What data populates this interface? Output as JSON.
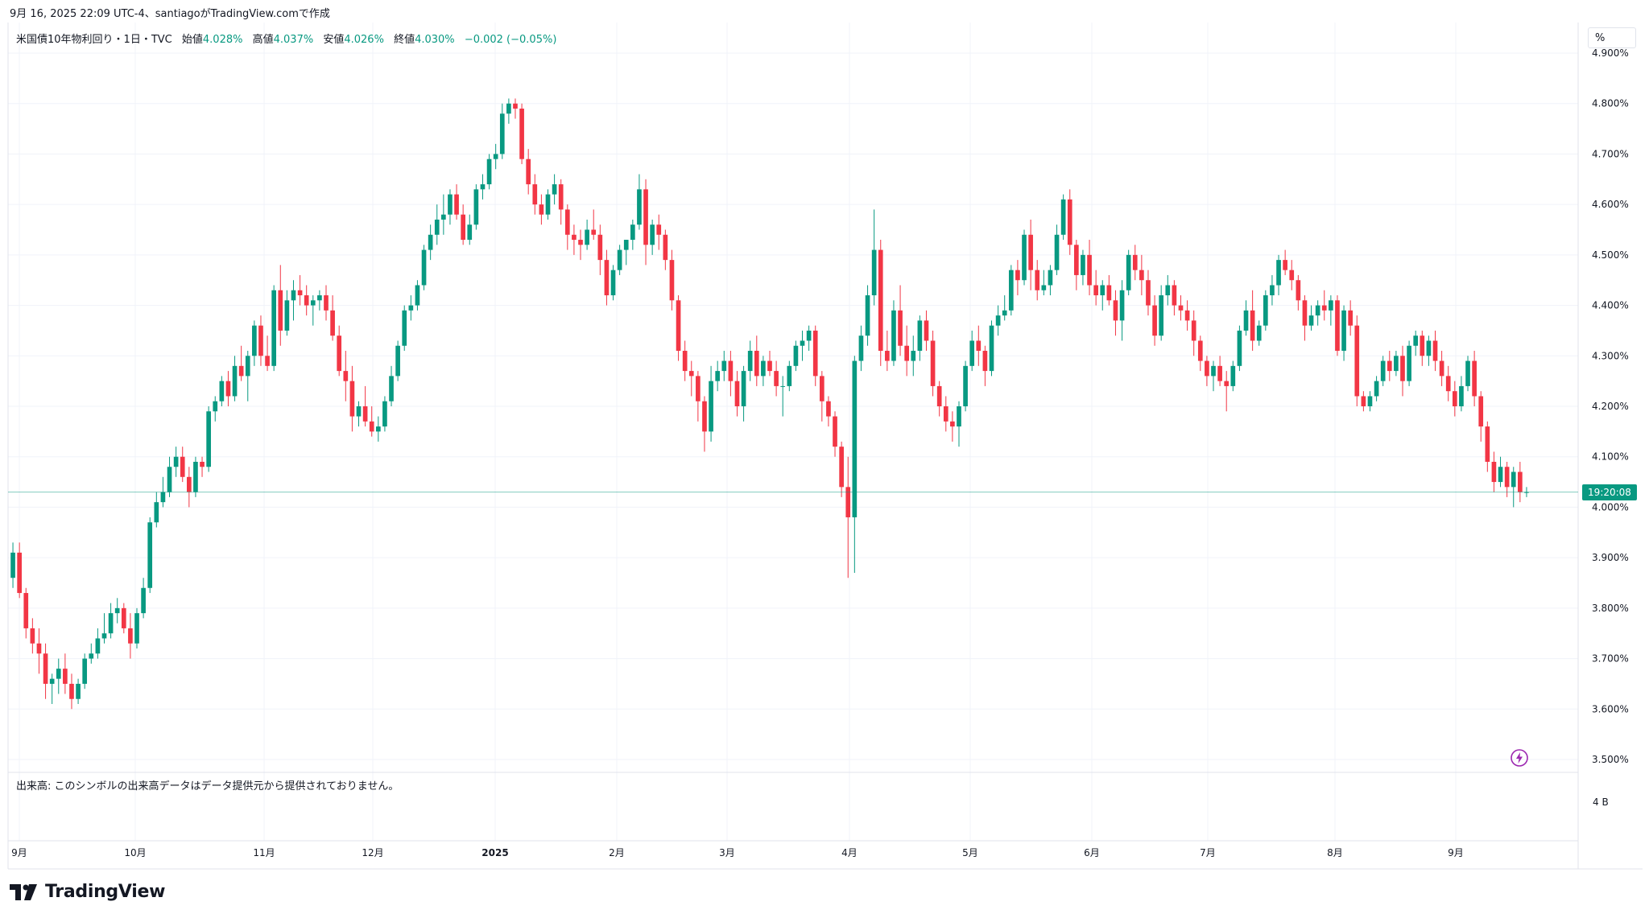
{
  "header": {
    "info": "9月 16, 2025 22:09 UTC-4、santiagoがTradingView.comで作成"
  },
  "legend": {
    "symbol": "米国債10年物利回り・1日・TVC",
    "open_label": "始値",
    "open": "4.028%",
    "high_label": "高値",
    "high": "4.037%",
    "low_label": "安値",
    "low": "4.026%",
    "close_label": "終値",
    "close": "4.030%",
    "change": "−0.002 (−0.05%)"
  },
  "price_axis": {
    "unit": "%",
    "last_price_tag": "19:20:08"
  },
  "volume": {
    "note": "出来高: このシンボルの出来高データはデータ提供元から提供されておりません。",
    "axis_label": "4 B"
  },
  "logo": {
    "text": "TradingView"
  },
  "colors": {
    "up": "#089981",
    "down": "#f23645",
    "grid": "#f0f3fa",
    "last_line": "#089981"
  },
  "icons": {
    "lightning": "lightning-icon",
    "logo": "tradingview-logo-icon"
  },
  "chart_data": {
    "type": "candlestick",
    "ylim": [
      3.5,
      4.9
    ],
    "y_ticks": [
      "4.900%",
      "4.800%",
      "4.700%",
      "4.600%",
      "4.500%",
      "4.400%",
      "4.300%",
      "4.200%",
      "4.100%",
      "4.000%",
      "3.900%",
      "3.800%",
      "3.700%",
      "3.600%",
      "3.500%"
    ],
    "x_ticks": [
      "9月",
      "10月",
      "11月",
      "12月",
      "2025",
      "2月",
      "3月",
      "4月",
      "5月",
      "6月",
      "7月",
      "8月",
      "9月"
    ],
    "last_close": 4.03,
    "candles_ohlc": [
      [
        3.86,
        3.93,
        3.84,
        3.91
      ],
      [
        3.91,
        3.93,
        3.82,
        3.83
      ],
      [
        3.83,
        3.84,
        3.74,
        3.76
      ],
      [
        3.76,
        3.78,
        3.71,
        3.73
      ],
      [
        3.73,
        3.76,
        3.67,
        3.71
      ],
      [
        3.71,
        3.73,
        3.62,
        3.65
      ],
      [
        3.65,
        3.67,
        3.61,
        3.66
      ],
      [
        3.66,
        3.7,
        3.63,
        3.68
      ],
      [
        3.68,
        3.71,
        3.63,
        3.65
      ],
      [
        3.65,
        3.67,
        3.6,
        3.62
      ],
      [
        3.62,
        3.66,
        3.61,
        3.65
      ],
      [
        3.65,
        3.71,
        3.64,
        3.7
      ],
      [
        3.7,
        3.73,
        3.69,
        3.71
      ],
      [
        3.71,
        3.76,
        3.7,
        3.74
      ],
      [
        3.74,
        3.79,
        3.73,
        3.75
      ],
      [
        3.75,
        3.81,
        3.74,
        3.79
      ],
      [
        3.79,
        3.82,
        3.77,
        3.8
      ],
      [
        3.8,
        3.81,
        3.75,
        3.76
      ],
      [
        3.76,
        3.79,
        3.7,
        3.73
      ],
      [
        3.73,
        3.8,
        3.72,
        3.79
      ],
      [
        3.79,
        3.86,
        3.78,
        3.84
      ],
      [
        3.84,
        3.98,
        3.83,
        3.97
      ],
      [
        3.97,
        4.03,
        3.96,
        4.01
      ],
      [
        4.01,
        4.06,
        4.0,
        4.03
      ],
      [
        4.03,
        4.1,
        4.02,
        4.08
      ],
      [
        4.08,
        4.12,
        4.06,
        4.1
      ],
      [
        4.1,
        4.12,
        4.05,
        4.06
      ],
      [
        4.06,
        4.08,
        4.0,
        4.03
      ],
      [
        4.03,
        4.1,
        4.02,
        4.09
      ],
      [
        4.09,
        4.1,
        4.06,
        4.08
      ],
      [
        4.08,
        4.2,
        4.07,
        4.19
      ],
      [
        4.19,
        4.22,
        4.17,
        4.21
      ],
      [
        4.21,
        4.26,
        4.2,
        4.25
      ],
      [
        4.25,
        4.27,
        4.2,
        4.22
      ],
      [
        4.22,
        4.3,
        4.21,
        4.28
      ],
      [
        4.28,
        4.32,
        4.25,
        4.26
      ],
      [
        4.26,
        4.31,
        4.21,
        4.3
      ],
      [
        4.3,
        4.37,
        4.28,
        4.36
      ],
      [
        4.36,
        4.38,
        4.28,
        4.3
      ],
      [
        4.3,
        4.34,
        4.27,
        4.28
      ],
      [
        4.28,
        4.44,
        4.27,
        4.43
      ],
      [
        4.43,
        4.48,
        4.32,
        4.35
      ],
      [
        4.35,
        4.43,
        4.34,
        4.41
      ],
      [
        4.41,
        4.45,
        4.37,
        4.43
      ],
      [
        4.43,
        4.46,
        4.4,
        4.42
      ],
      [
        4.42,
        4.44,
        4.38,
        4.4
      ],
      [
        4.4,
        4.42,
        4.36,
        4.41
      ],
      [
        4.41,
        4.43,
        4.39,
        4.42
      ],
      [
        4.42,
        4.44,
        4.37,
        4.39
      ],
      [
        4.39,
        4.42,
        4.33,
        4.34
      ],
      [
        4.34,
        4.36,
        4.26,
        4.27
      ],
      [
        4.27,
        4.31,
        4.21,
        4.25
      ],
      [
        4.25,
        4.28,
        4.15,
        4.18
      ],
      [
        4.18,
        4.21,
        4.16,
        4.2
      ],
      [
        4.2,
        4.24,
        4.16,
        4.17
      ],
      [
        4.17,
        4.2,
        4.14,
        4.15
      ],
      [
        4.15,
        4.18,
        4.13,
        4.16
      ],
      [
        4.16,
        4.22,
        4.15,
        4.21
      ],
      [
        4.21,
        4.28,
        4.2,
        4.26
      ],
      [
        4.26,
        4.33,
        4.25,
        4.32
      ],
      [
        4.32,
        4.4,
        4.31,
        4.39
      ],
      [
        4.39,
        4.42,
        4.37,
        4.4
      ],
      [
        4.4,
        4.45,
        4.39,
        4.44
      ],
      [
        4.44,
        4.52,
        4.43,
        4.51
      ],
      [
        4.51,
        4.56,
        4.49,
        4.54
      ],
      [
        4.54,
        4.6,
        4.52,
        4.57
      ],
      [
        4.57,
        4.62,
        4.54,
        4.58
      ],
      [
        4.58,
        4.63,
        4.56,
        4.62
      ],
      [
        4.62,
        4.64,
        4.57,
        4.58
      ],
      [
        4.58,
        4.6,
        4.52,
        4.53
      ],
      [
        4.53,
        4.58,
        4.52,
        4.56
      ],
      [
        4.56,
        4.64,
        4.55,
        4.63
      ],
      [
        4.63,
        4.66,
        4.61,
        4.64
      ],
      [
        4.64,
        4.7,
        4.63,
        4.69
      ],
      [
        4.69,
        4.72,
        4.67,
        4.7
      ],
      [
        4.7,
        4.8,
        4.69,
        4.78
      ],
      [
        4.78,
        4.81,
        4.76,
        4.8
      ],
      [
        4.8,
        4.81,
        4.77,
        4.79
      ],
      [
        4.79,
        4.8,
        4.68,
        4.69
      ],
      [
        4.69,
        4.71,
        4.62,
        4.64
      ],
      [
        4.64,
        4.66,
        4.58,
        4.6
      ],
      [
        4.6,
        4.62,
        4.56,
        4.58
      ],
      [
        4.58,
        4.63,
        4.57,
        4.62
      ],
      [
        4.62,
        4.66,
        4.6,
        4.64
      ],
      [
        4.64,
        4.65,
        4.56,
        4.59
      ],
      [
        4.59,
        4.6,
        4.51,
        4.54
      ],
      [
        4.54,
        4.56,
        4.5,
        4.53
      ],
      [
        4.53,
        4.55,
        4.49,
        4.52
      ],
      [
        4.52,
        4.57,
        4.51,
        4.55
      ],
      [
        4.55,
        4.59,
        4.53,
        4.54
      ],
      [
        4.54,
        4.56,
        4.46,
        4.49
      ],
      [
        4.49,
        4.51,
        4.4,
        4.42
      ],
      [
        4.42,
        4.48,
        4.41,
        4.47
      ],
      [
        4.47,
        4.52,
        4.46,
        4.51
      ],
      [
        4.51,
        4.53,
        4.48,
        4.53
      ],
      [
        4.53,
        4.57,
        4.51,
        4.56
      ],
      [
        4.56,
        4.66,
        4.55,
        4.63
      ],
      [
        4.63,
        4.65,
        4.48,
        4.52
      ],
      [
        4.52,
        4.57,
        4.5,
        4.56
      ],
      [
        4.56,
        4.58,
        4.51,
        4.54
      ],
      [
        4.54,
        4.55,
        4.47,
        4.49
      ],
      [
        4.49,
        4.51,
        4.39,
        4.41
      ],
      [
        4.41,
        4.42,
        4.29,
        4.31
      ],
      [
        4.31,
        4.33,
        4.25,
        4.27
      ],
      [
        4.27,
        4.29,
        4.22,
        4.26
      ],
      [
        4.26,
        4.27,
        4.17,
        4.21
      ],
      [
        4.21,
        4.22,
        4.11,
        4.15
      ],
      [
        4.15,
        4.28,
        4.13,
        4.25
      ],
      [
        4.25,
        4.29,
        4.23,
        4.27
      ],
      [
        4.27,
        4.31,
        4.25,
        4.29
      ],
      [
        4.29,
        4.31,
        4.22,
        4.25
      ],
      [
        4.25,
        4.27,
        4.18,
        4.2
      ],
      [
        4.2,
        4.28,
        4.17,
        4.27
      ],
      [
        4.27,
        4.33,
        4.25,
        4.31
      ],
      [
        4.31,
        4.34,
        4.24,
        4.26
      ],
      [
        4.26,
        4.3,
        4.24,
        4.29
      ],
      [
        4.29,
        4.31,
        4.26,
        4.27
      ],
      [
        4.27,
        4.29,
        4.22,
        4.24
      ],
      [
        4.24,
        4.26,
        4.18,
        4.24
      ],
      [
        4.24,
        4.29,
        4.23,
        4.28
      ],
      [
        4.28,
        4.33,
        4.27,
        4.32
      ],
      [
        4.32,
        4.35,
        4.29,
        4.33
      ],
      [
        4.33,
        4.36,
        4.31,
        4.35
      ],
      [
        4.35,
        4.36,
        4.24,
        4.26
      ],
      [
        4.26,
        4.27,
        4.17,
        4.21
      ],
      [
        4.21,
        4.22,
        4.16,
        4.18
      ],
      [
        4.18,
        4.19,
        4.1,
        4.12
      ],
      [
        4.12,
        4.13,
        4.02,
        4.04
      ],
      [
        4.04,
        4.1,
        3.86,
        3.98
      ],
      [
        3.98,
        4.3,
        3.87,
        4.29
      ],
      [
        4.29,
        4.36,
        4.27,
        4.34
      ],
      [
        4.34,
        4.44,
        4.32,
        4.42
      ],
      [
        4.42,
        4.59,
        4.4,
        4.51
      ],
      [
        4.51,
        4.53,
        4.28,
        4.31
      ],
      [
        4.31,
        4.35,
        4.27,
        4.29
      ],
      [
        4.29,
        4.41,
        4.28,
        4.39
      ],
      [
        4.39,
        4.44,
        4.3,
        4.32
      ],
      [
        4.32,
        4.36,
        4.26,
        4.29
      ],
      [
        4.29,
        4.34,
        4.26,
        4.31
      ],
      [
        4.31,
        4.38,
        4.29,
        4.37
      ],
      [
        4.37,
        4.39,
        4.31,
        4.33
      ],
      [
        4.33,
        4.35,
        4.22,
        4.24
      ],
      [
        4.24,
        4.25,
        4.18,
        4.2
      ],
      [
        4.2,
        4.22,
        4.15,
        4.17
      ],
      [
        4.17,
        4.19,
        4.13,
        4.16
      ],
      [
        4.16,
        4.21,
        4.12,
        4.2
      ],
      [
        4.2,
        4.29,
        4.19,
        4.28
      ],
      [
        4.28,
        4.35,
        4.27,
        4.33
      ],
      [
        4.33,
        4.36,
        4.28,
        4.31
      ],
      [
        4.31,
        4.32,
        4.24,
        4.27
      ],
      [
        4.27,
        4.37,
        4.26,
        4.36
      ],
      [
        4.36,
        4.4,
        4.34,
        4.38
      ],
      [
        4.38,
        4.42,
        4.37,
        4.39
      ],
      [
        4.39,
        4.48,
        4.38,
        4.47
      ],
      [
        4.47,
        4.49,
        4.42,
        4.45
      ],
      [
        4.45,
        4.55,
        4.44,
        4.54
      ],
      [
        4.54,
        4.57,
        4.43,
        4.47
      ],
      [
        4.47,
        4.49,
        4.41,
        4.43
      ],
      [
        4.43,
        4.47,
        4.42,
        4.44
      ],
      [
        4.44,
        4.48,
        4.42,
        4.47
      ],
      [
        4.47,
        4.56,
        4.46,
        4.54
      ],
      [
        4.54,
        4.62,
        4.53,
        4.61
      ],
      [
        4.61,
        4.63,
        4.5,
        4.52
      ],
      [
        4.52,
        4.53,
        4.43,
        4.46
      ],
      [
        4.46,
        4.51,
        4.44,
        4.5
      ],
      [
        4.5,
        4.53,
        4.42,
        4.44
      ],
      [
        4.44,
        4.47,
        4.4,
        4.42
      ],
      [
        4.42,
        4.45,
        4.39,
        4.44
      ],
      [
        4.44,
        4.46,
        4.4,
        4.41
      ],
      [
        4.41,
        4.43,
        4.34,
        4.37
      ],
      [
        4.37,
        4.45,
        4.33,
        4.43
      ],
      [
        4.43,
        4.51,
        4.42,
        4.5
      ],
      [
        4.5,
        4.52,
        4.45,
        4.47
      ],
      [
        4.47,
        4.5,
        4.42,
        4.45
      ],
      [
        4.45,
        4.47,
        4.38,
        4.4
      ],
      [
        4.4,
        4.42,
        4.32,
        4.34
      ],
      [
        4.34,
        4.44,
        4.33,
        4.42
      ],
      [
        4.42,
        4.46,
        4.4,
        4.44
      ],
      [
        4.44,
        4.45,
        4.38,
        4.4
      ],
      [
        4.4,
        4.42,
        4.37,
        4.39
      ],
      [
        4.39,
        4.41,
        4.35,
        4.37
      ],
      [
        4.37,
        4.39,
        4.3,
        4.33
      ],
      [
        4.33,
        4.34,
        4.27,
        4.29
      ],
      [
        4.29,
        4.3,
        4.24,
        4.26
      ],
      [
        4.26,
        4.29,
        4.23,
        4.28
      ],
      [
        4.28,
        4.3,
        4.24,
        4.25
      ],
      [
        4.25,
        4.27,
        4.19,
        4.24
      ],
      [
        4.24,
        4.29,
        4.23,
        4.28
      ],
      [
        4.28,
        4.36,
        4.27,
        4.35
      ],
      [
        4.35,
        4.41,
        4.34,
        4.39
      ],
      [
        4.39,
        4.43,
        4.31,
        4.33
      ],
      [
        4.33,
        4.37,
        4.32,
        4.36
      ],
      [
        4.36,
        4.43,
        4.35,
        4.42
      ],
      [
        4.42,
        4.46,
        4.4,
        4.44
      ],
      [
        4.44,
        4.5,
        4.42,
        4.49
      ],
      [
        4.49,
        4.51,
        4.46,
        4.47
      ],
      [
        4.47,
        4.49,
        4.43,
        4.45
      ],
      [
        4.45,
        4.46,
        4.39,
        4.41
      ],
      [
        4.41,
        4.42,
        4.33,
        4.36
      ],
      [
        4.36,
        4.4,
        4.35,
        4.38
      ],
      [
        4.38,
        4.41,
        4.36,
        4.4
      ],
      [
        4.4,
        4.43,
        4.37,
        4.39
      ],
      [
        4.39,
        4.42,
        4.36,
        4.41
      ],
      [
        4.41,
        4.42,
        4.3,
        4.31
      ],
      [
        4.31,
        4.4,
        4.29,
        4.39
      ],
      [
        4.39,
        4.41,
        4.34,
        4.36
      ],
      [
        4.36,
        4.38,
        4.2,
        4.22
      ],
      [
        4.22,
        4.23,
        4.19,
        4.2
      ],
      [
        4.2,
        4.23,
        4.19,
        4.22
      ],
      [
        4.22,
        4.26,
        4.21,
        4.25
      ],
      [
        4.25,
        4.3,
        4.24,
        4.29
      ],
      [
        4.29,
        4.31,
        4.25,
        4.27
      ],
      [
        4.27,
        4.31,
        4.26,
        4.3
      ],
      [
        4.3,
        4.32,
        4.22,
        4.25
      ],
      [
        4.25,
        4.33,
        4.24,
        4.32
      ],
      [
        4.32,
        4.35,
        4.3,
        4.34
      ],
      [
        4.34,
        4.35,
        4.28,
        4.3
      ],
      [
        4.3,
        4.34,
        4.28,
        4.33
      ],
      [
        4.33,
        4.35,
        4.27,
        4.29
      ],
      [
        4.29,
        4.31,
        4.24,
        4.26
      ],
      [
        4.26,
        4.28,
        4.21,
        4.23
      ],
      [
        4.23,
        4.25,
        4.18,
        4.2
      ],
      [
        4.2,
        4.26,
        4.19,
        4.24
      ],
      [
        4.24,
        4.3,
        4.23,
        4.29
      ],
      [
        4.29,
        4.31,
        4.2,
        4.22
      ],
      [
        4.22,
        4.23,
        4.13,
        4.16
      ],
      [
        4.16,
        4.17,
        4.07,
        4.09
      ],
      [
        4.09,
        4.11,
        4.03,
        4.05
      ],
      [
        4.05,
        4.1,
        4.04,
        4.08
      ],
      [
        4.08,
        4.09,
        4.02,
        4.04
      ],
      [
        4.04,
        4.08,
        4.0,
        4.07
      ],
      [
        4.07,
        4.09,
        4.01,
        4.03
      ],
      [
        4.03,
        4.04,
        4.02,
        4.03
      ]
    ]
  }
}
